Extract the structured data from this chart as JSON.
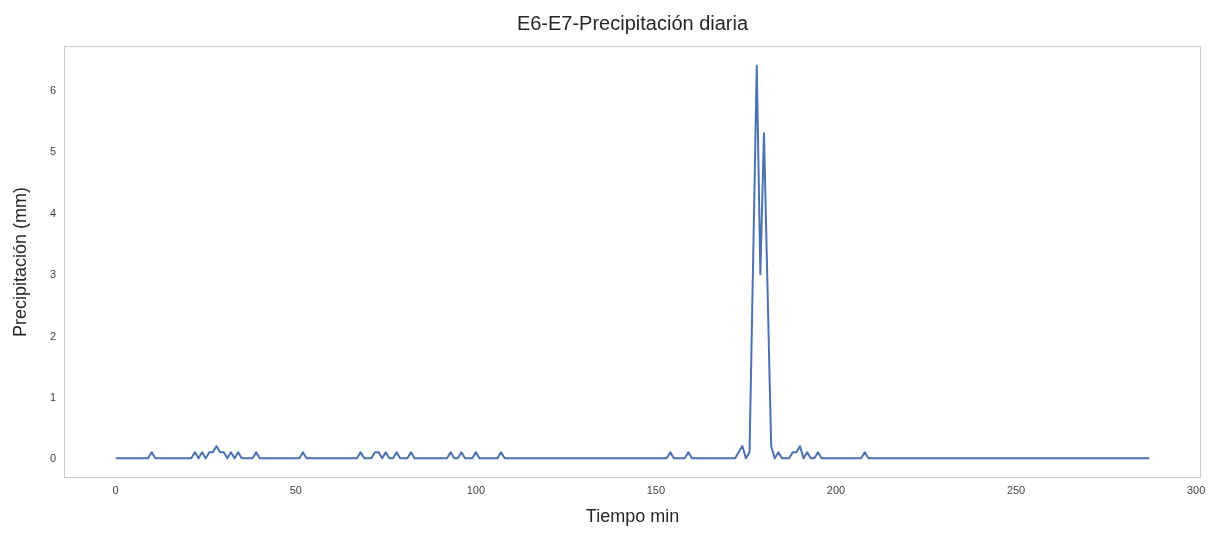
{
  "chart_data": {
    "type": "line",
    "title": "E6-E7-Precipitación diaria",
    "xlabel": "Tiempo min",
    "ylabel": "Precipitación (mm)",
    "x": [
      0,
      9,
      10,
      11,
      21,
      22,
      23,
      24,
      25,
      26,
      27,
      28,
      29,
      30,
      31,
      32,
      33,
      34,
      35,
      38,
      39,
      40,
      51,
      52,
      53,
      67,
      68,
      69,
      71,
      72,
      73,
      74,
      75,
      76,
      77,
      78,
      79,
      81,
      82,
      83,
      92,
      93,
      94,
      95,
      96,
      97,
      99,
      100,
      101,
      106,
      107,
      108,
      153,
      154,
      155,
      158,
      159,
      160,
      172,
      174,
      175,
      176,
      178,
      179,
      180,
      182,
      183,
      184,
      185,
      187,
      188,
      189,
      190,
      191,
      192,
      193,
      194,
      195,
      196,
      207,
      208,
      209,
      287
    ],
    "series": [
      {
        "color": "#4c72b0",
        "values": [
          0,
          0,
          0.1,
          0,
          0,
          0.1,
          0,
          0.1,
          0,
          0.1,
          0.1,
          0.2,
          0.1,
          0.1,
          0,
          0.1,
          0,
          0.1,
          0,
          0,
          0.1,
          0,
          0,
          0.1,
          0,
          0,
          0.1,
          0,
          0,
          0.1,
          0.1,
          0,
          0.1,
          0,
          0,
          0.1,
          0,
          0,
          0.1,
          0,
          0,
          0.1,
          0,
          0,
          0.1,
          0,
          0,
          0.1,
          0,
          0,
          0.1,
          0,
          0,
          0.1,
          0,
          0,
          0.1,
          0,
          0,
          0.2,
          0,
          0.1,
          6.4,
          3.0,
          5.3,
          0.2,
          0,
          0.1,
          0,
          0,
          0.1,
          0.1,
          0.2,
          0,
          0.1,
          0,
          0,
          0.1,
          0,
          0,
          0.1,
          0,
          0
        ]
      }
    ],
    "xlim": [
      -14.35,
      301.35
    ],
    "xticks": [
      0,
      50,
      100,
      150,
      200,
      250,
      300
    ],
    "ylim": [
      -0.32,
      6.72
    ],
    "yticks": [
      0,
      1,
      2,
      3,
      4,
      5,
      6
    ],
    "legend": false,
    "marker": "none",
    "line_style": "solid"
  }
}
